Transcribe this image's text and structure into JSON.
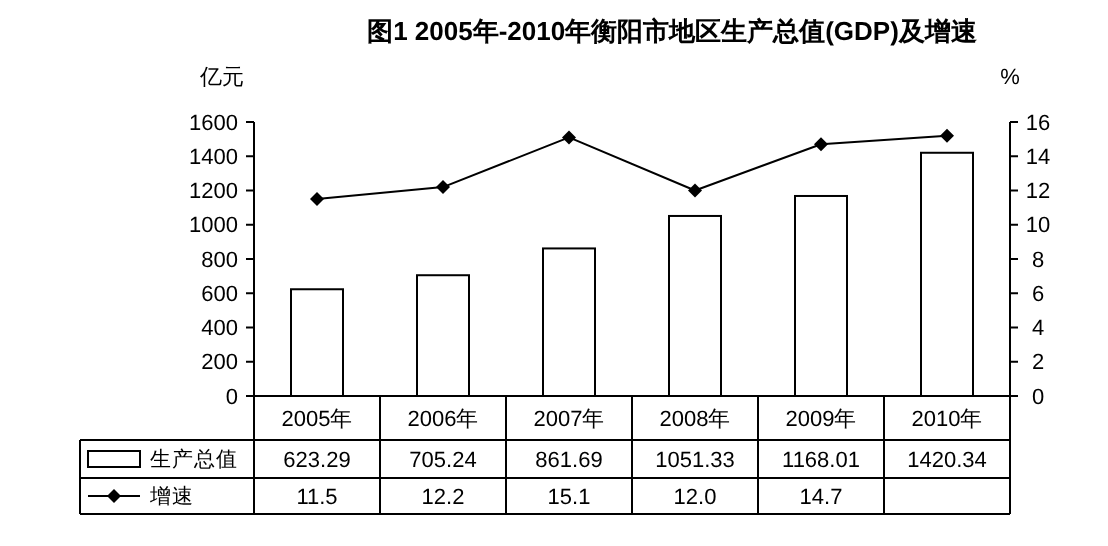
{
  "chart_data": {
    "type": "bar",
    "title": "图1  2005年-2010年衡阳市地区生产总值(GDP)及增速",
    "ylabel": "亿元",
    "y2label": "%",
    "categories": [
      "2005年",
      "2006年",
      "2007年",
      "2008年",
      "2009年",
      "2010年"
    ],
    "series": [
      {
        "name": "生产总值",
        "color": "#ffffff",
        "values": [
          623.29,
          705.24,
          861.69,
          1051.33,
          1168.01,
          1420.34
        ],
        "value_labels": [
          "623.29",
          "705.24",
          "861.69",
          "1051.33",
          "1168.01",
          "1420.34"
        ]
      },
      {
        "name": "增速",
        "type": "line",
        "axis": "y2",
        "color": "#000000",
        "values": [
          11.5,
          12.2,
          15.1,
          12.0,
          14.7,
          15.2
        ],
        "value_labels": [
          "11.5",
          "12.2",
          "15.1",
          "12.0",
          "14.7",
          null
        ]
      }
    ],
    "ylim": [
      0,
      1600
    ],
    "yticks": [
      0,
      200,
      400,
      600,
      800,
      1000,
      1200,
      1400,
      1600
    ],
    "y2lim": [
      0,
      16
    ],
    "y2ticks": [
      0,
      2,
      4,
      6,
      8,
      10,
      12,
      14,
      16
    ],
    "marker": "diamond",
    "legend": "bottom",
    "grid": false
  }
}
